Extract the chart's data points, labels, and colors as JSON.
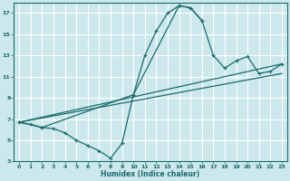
{
  "xlabel": "Humidex (Indice chaleur)",
  "xlim": [
    -0.5,
    23.5
  ],
  "ylim": [
    3,
    18
  ],
  "yticks": [
    3,
    5,
    7,
    9,
    11,
    13,
    15,
    17
  ],
  "xticks": [
    0,
    1,
    2,
    3,
    4,
    5,
    6,
    7,
    8,
    9,
    10,
    11,
    12,
    13,
    14,
    15,
    16,
    17,
    18,
    19,
    20,
    21,
    22,
    23
  ],
  "bg_color": "#cce8ec",
  "line_color": "#1a6b6b",
  "grid_color": "#ffffff",
  "line_zigzag": {
    "x": [
      0,
      1,
      2,
      3,
      4,
      5,
      6,
      7,
      8,
      9,
      10,
      11,
      12,
      13,
      14,
      15,
      16
    ],
    "y": [
      6.7,
      6.5,
      6.2,
      6.1,
      5.7,
      5.0,
      4.5,
      4.0,
      3.3,
      4.7,
      9.3,
      13.0,
      15.3,
      17.0,
      17.7,
      17.5,
      16.3
    ]
  },
  "line_arc": {
    "x": [
      0,
      2,
      10,
      14,
      15,
      16,
      17,
      18,
      19,
      20,
      21,
      22,
      23
    ],
    "y": [
      6.7,
      6.2,
      9.3,
      17.7,
      17.5,
      16.3,
      13.0,
      11.8,
      12.5,
      12.9,
      11.3,
      11.5,
      12.2
    ]
  },
  "line_straight1": {
    "x": [
      0,
      23
    ],
    "y": [
      6.7,
      12.2
    ]
  },
  "line_straight2": {
    "x": [
      0,
      23
    ],
    "y": [
      6.7,
      11.3
    ]
  }
}
